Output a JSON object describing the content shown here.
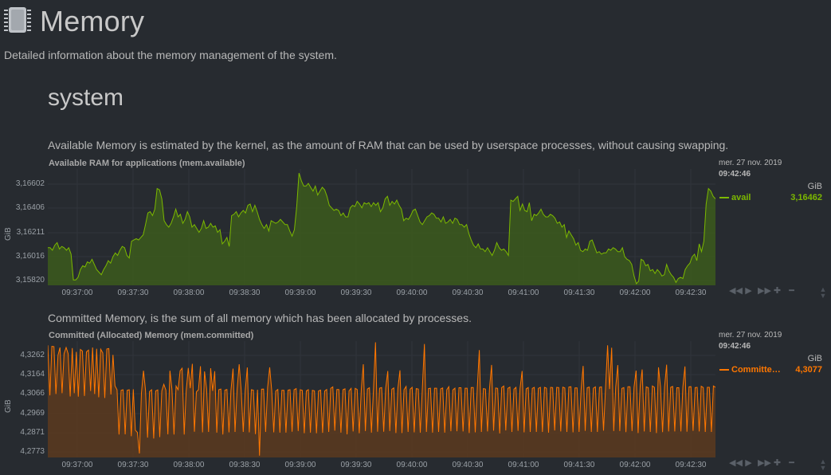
{
  "page": {
    "title": "Memory",
    "description": "Detailed information about the memory management of the system.",
    "section": "system"
  },
  "colors": {
    "background": "#272b30",
    "avail": "#7cb800",
    "committed": "#ff7700"
  },
  "charts": [
    {
      "description": "Available Memory is estimated by the kernel, as the amount of RAM that can be used by userspace processes, without causing swapping.",
      "title": "Available RAM for applications (mem.available)",
      "yunit": "GiB",
      "yticks": [
        "3,16602",
        "3,16406",
        "3,16211",
        "3,16016",
        "3,15820"
      ],
      "xticks": [
        "09:37:00",
        "09:37:30",
        "09:38:00",
        "09:38:30",
        "09:39:00",
        "09:39:30",
        "09:40:00",
        "09:40:30",
        "09:41:00",
        "09:41:30",
        "09:42:00",
        "09:42:30"
      ],
      "legend": {
        "date": "mer. 27 nov. 2019",
        "time": "09:42:46",
        "unit": "GiB",
        "name": "avail",
        "value": "3,16462"
      }
    },
    {
      "description": "Committed Memory, is the sum of all memory which has been allocated by processes.",
      "title": "Committed (Allocated) Memory (mem.committed)",
      "yunit": "GiB",
      "yticks": [
        "4,3262",
        "4,3164",
        "4,3066",
        "4,2969",
        "4,2871",
        "4,2773"
      ],
      "xticks": [
        "09:37:00",
        "09:37:30",
        "09:38:00",
        "09:38:30",
        "09:39:00",
        "09:39:30",
        "09:40:00",
        "09:40:30",
        "09:41:00",
        "09:41:30",
        "09:42:00",
        "09:42:30"
      ],
      "legend": {
        "date": "mer. 27 nov. 2019",
        "time": "09:42:46",
        "unit": "GiB",
        "name": "Committe…",
        "value": "4,3077"
      }
    }
  ],
  "chart_data": [
    {
      "type": "area",
      "title": "Available RAM for applications (mem.available)",
      "ylabel": "GiB",
      "ylim": [
        3.158,
        3.1668
      ],
      "x_start": "09:36:53",
      "x_end": "09:42:46",
      "series": [
        {
          "name": "avail",
          "values": [
            3.1608,
            3.1608,
            3.1606,
            3.161,
            3.1612,
            3.1607,
            3.1609,
            3.1608,
            3.1606,
            3.1608,
            3.1603,
            3.1583,
            3.1583,
            3.1585,
            3.1591,
            3.1594,
            3.1593,
            3.1597,
            3.1596,
            3.1599,
            3.1595,
            3.1591,
            3.1589,
            3.1587,
            3.1591,
            3.1594,
            3.1598,
            3.1596,
            3.1601,
            3.1604,
            3.1602,
            3.1606,
            3.1609,
            3.1608,
            3.1602,
            3.16,
            3.1613,
            3.1614,
            3.1615,
            3.1614,
            3.1616,
            3.1618,
            3.1626,
            3.1635,
            3.1636,
            3.1633,
            3.1638,
            3.1654,
            3.1653,
            3.1646,
            3.1629,
            3.1626,
            3.1624,
            3.1627,
            3.1632,
            3.1638,
            3.1632,
            3.1634,
            3.1627,
            3.163,
            3.1636,
            3.1632,
            3.1624,
            3.1626,
            3.1623,
            3.162,
            3.1623,
            3.1629,
            3.1623,
            3.1624,
            3.1627,
            3.1624,
            3.1625,
            3.162,
            3.1622,
            3.1611,
            3.1613,
            3.1616,
            3.1609,
            3.1633,
            3.1634,
            3.1636,
            3.1632,
            3.1635,
            3.1637,
            3.1635,
            3.1641,
            3.1642,
            3.1636,
            3.1641,
            3.1636,
            3.163,
            3.1626,
            3.1623,
            3.1626,
            3.1621,
            3.1629,
            3.1628,
            3.1627,
            3.1628,
            3.163,
            3.1628,
            3.1626,
            3.1626,
            3.1621,
            3.1617,
            3.1622,
            3.164,
            3.1666,
            3.166,
            3.1656,
            3.1656,
            3.1658,
            3.1655,
            3.1652,
            3.1656,
            3.1649,
            3.1652,
            3.1655,
            3.1653,
            3.1648,
            3.1641,
            3.1639,
            3.1637,
            3.1638,
            3.1637,
            3.1633,
            3.1635,
            3.1632,
            3.1632,
            3.1639,
            3.1641,
            3.164,
            3.1644,
            3.1642,
            3.1639,
            3.1643,
            3.1642,
            3.1643,
            3.164,
            3.1643,
            3.1641,
            3.1643,
            3.1636,
            3.1639,
            3.1646,
            3.1648,
            3.1641,
            3.1644,
            3.1642,
            3.1645,
            3.1641,
            3.1638,
            3.1629,
            3.1631,
            3.163,
            3.1633,
            3.1637,
            3.1638,
            3.1633,
            3.1628,
            3.1626,
            3.1629,
            3.1632,
            3.1633,
            3.1635,
            3.1634,
            3.1631,
            3.1631,
            3.1628,
            3.1632,
            3.1627,
            3.1628,
            3.163,
            3.1627,
            3.1631,
            3.163,
            3.1626,
            3.1626,
            3.1624,
            3.1626,
            3.1619,
            3.1614,
            3.161,
            3.1608,
            3.1611,
            3.1607,
            3.1607,
            3.1605,
            3.1608,
            3.1605,
            3.1602,
            3.1606,
            3.1612,
            3.1608,
            3.1606,
            3.1607,
            3.1605,
            3.1602,
            3.1645,
            3.1644,
            3.1646,
            3.1648,
            3.1637,
            3.1642,
            3.1637,
            3.1636,
            3.1643,
            3.1629,
            3.1634,
            3.1633,
            3.1635,
            3.1638,
            3.1634,
            3.1632,
            3.1632,
            3.1634,
            3.1633,
            3.1631,
            3.1627,
            3.1628,
            3.1624,
            3.1626,
            3.1616,
            3.1621,
            3.1618,
            3.1615,
            3.161,
            3.1612,
            3.1606,
            3.1605,
            3.1607,
            3.1606,
            3.1613,
            3.1614,
            3.1609,
            3.1604,
            3.1605,
            3.1603,
            3.1604,
            3.1604,
            3.1607,
            3.1606,
            3.1608,
            3.1607,
            3.1605,
            3.1605,
            3.1608,
            3.1601,
            3.1599,
            3.1598,
            3.1595,
            3.1586,
            3.158,
            3.1582,
            3.1599,
            3.1598,
            3.1594,
            3.1595,
            3.159,
            3.1591,
            3.1588,
            3.1591,
            3.1589,
            3.1586,
            3.1587,
            3.1595,
            3.159,
            3.1587,
            3.1585,
            3.1581,
            3.1584,
            3.1585,
            3.1584,
            3.1591,
            3.1594,
            3.1596,
            3.1601,
            3.1603,
            3.1598,
            3.1611,
            3.1605,
            3.1613,
            3.1642,
            3.1654,
            3.1652,
            3.1648,
            3.1646
          ]
        }
      ]
    },
    {
      "type": "area",
      "title": "Committed (Allocated) Memory (mem.committed)",
      "ylabel": "GiB",
      "ylim": [
        4.2762,
        4.3282
      ],
      "x_start": "09:36:53",
      "x_end": "09:42:46",
      "series": [
        {
          "name": "Committed",
          "values": [
            4.327,
            4.304,
            4.3265,
            4.3264,
            4.3046,
            4.3225,
            4.326,
            4.305,
            4.3232,
            4.326,
            4.3232,
            4.3035,
            4.3257,
            4.305,
            4.324,
            4.3034,
            4.3251,
            4.3244,
            4.3037,
            4.324,
            4.3248,
            4.306,
            4.326,
            4.3046,
            4.3254,
            4.3031,
            4.3252,
            4.3235,
            4.3028,
            4.3253,
            4.3255,
            4.3044,
            4.3226,
            4.3084,
            4.3066,
            4.286,
            4.3063,
            4.3066,
            4.2861,
            4.3063,
            4.3066,
            4.2852,
            4.3068,
            4.288,
            4.287,
            4.2773,
            4.3051,
            4.3153,
            4.3065,
            4.2846,
            4.3058,
            4.3066,
            4.2842,
            4.3061,
            4.3065,
            4.2848,
            4.3061,
            4.3091,
            4.3064,
            4.2861,
            4.3153,
            4.3068,
            4.286,
            4.3083,
            4.3066,
            4.3153,
            4.3165,
            4.286,
            4.3061,
            4.3166,
            4.3073,
            4.3185,
            4.2873,
            4.3056,
            4.3066,
            4.3174,
            4.287,
            4.315,
            4.3069,
            4.2872,
            4.3165,
            4.3061,
            4.3151,
            4.2869,
            4.3066,
            4.3069,
            4.286,
            4.3064,
            4.3067,
            4.287,
            4.3064,
            4.3163,
            4.2872,
            4.3066,
            4.3183,
            4.3064,
            4.2872,
            4.3061,
            4.3168,
            4.287,
            4.3066,
            4.3064,
            4.2862,
            4.3066,
            4.2763,
            4.3068,
            4.3069,
            4.2872,
            4.3077,
            4.3169,
            4.3064,
            4.287,
            4.306,
            4.3067,
            4.2869,
            4.3063,
            4.3063,
            4.2869,
            4.3064,
            4.3066,
            4.2873,
            4.3066,
            4.3071,
            4.2876,
            4.3066,
            4.3063,
            4.2866,
            4.3061,
            4.3066,
            4.2869,
            4.3063,
            4.3061,
            4.2866,
            4.306,
            4.3064,
            4.2868,
            4.306,
            4.3067,
            4.2872,
            4.3072,
            4.3079,
            4.2878,
            4.3067,
            4.3067,
            4.2869,
            4.3066,
            4.307,
            4.2861,
            4.3061,
            4.3072,
            4.2874,
            4.3072,
            4.3067,
            4.2866,
            4.3069,
            4.3183,
            4.2876,
            4.3069,
            4.3075,
            4.2869,
            4.3071,
            4.3284,
            4.2873,
            4.3073,
            4.3076,
            4.2873,
            4.3073,
            4.3152,
            4.2876,
            4.3068,
            4.3074,
            4.2867,
            4.3072,
            4.3155,
            4.2867,
            4.3066,
            4.3081,
            4.2872,
            4.3068,
            4.3077,
            4.287,
            4.3071,
            4.3069,
            4.2869,
            4.3072,
            4.3276,
            4.2872,
            4.3071,
            4.3073,
            4.2869,
            4.3073,
            4.3073,
            4.2872,
            4.307,
            4.3074,
            4.2869,
            4.3066,
            4.308,
            4.2875,
            4.3065,
            4.3073,
            4.2875,
            4.3075,
            4.3075,
            4.2874,
            4.3073,
            4.3073,
            4.2867,
            4.3076,
            4.3076,
            4.287,
            4.3076,
            4.3248,
            4.2872,
            4.3071,
            4.3069,
            4.2874,
            4.3072,
            4.318,
            4.2878,
            4.3074,
            4.3072,
            4.2865,
            4.3076,
            4.3083,
            4.2879,
            4.3072,
            4.3078,
            4.2872,
            4.3068,
            4.3077,
            4.2877,
            4.3071,
            4.3152,
            4.287,
            4.307,
            4.3076,
            4.2872,
            4.3072,
            4.3077,
            4.2872,
            4.3072,
            4.3077,
            4.2872,
            4.3077,
            4.3073,
            4.2869,
            4.3077,
            4.3076,
            4.2879,
            4.3077,
            4.3076,
            4.2874,
            4.3078,
            4.3074,
            4.2872,
            4.3078,
            4.308,
            4.287,
            4.3074,
            4.3074,
            4.2872,
            4.307,
            4.3175,
            4.2877,
            4.3075,
            4.3078,
            4.2872,
            4.3073,
            4.3079,
            4.2872,
            4.3077,
            4.3079,
            4.2878,
            4.3072,
            4.327,
            4.3069,
            4.3259,
            4.2876,
            4.3079,
            4.3179,
            4.2876,
            4.3072,
            4.3076,
            4.2871,
            4.308,
            4.308,
            4.2876,
            4.3078,
            4.3154,
            4.2867,
            4.3082,
            4.3159,
            4.2874,
            4.3079,
            4.3075,
            4.2872,
            4.3083,
            4.3077,
            4.2867,
            4.3169,
            4.3079,
            4.2871,
            4.3079,
            4.3181,
            4.2874,
            4.3077,
            4.3081,
            4.2874,
            4.3075,
            4.3075,
            4.2874,
            4.308,
            4.3173,
            4.2873,
            4.3079,
            4.308,
            4.2877,
            4.3076,
            4.3077,
            4.2874,
            4.3082,
            4.3076,
            4.2872,
            4.3077,
            4.3077,
            4.2872,
            4.3083,
            4.3077
          ]
        }
      ]
    }
  ]
}
